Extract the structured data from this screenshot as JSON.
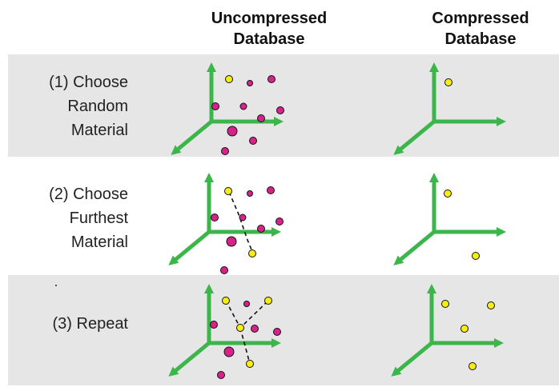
{
  "headers": {
    "uncompressed": [
      "Uncompressed",
      "Database"
    ],
    "compressed": [
      "Compressed",
      "Database"
    ]
  },
  "steps": [
    {
      "lines": [
        "(1) Choose",
        "Random",
        "Material"
      ]
    },
    {
      "lines": [
        "(2) Choose",
        "Furthest",
        "Material"
      ]
    },
    {
      "lines": [
        "(3) Repeat"
      ]
    }
  ],
  "colors": {
    "axis": "#3cb54a",
    "material": "#d6238c",
    "selected": "#f7ec13",
    "band": "#e6e6e6"
  },
  "icons": [
    "3d-axes-icon",
    "material-point-icon",
    "selected-point-icon"
  ]
}
